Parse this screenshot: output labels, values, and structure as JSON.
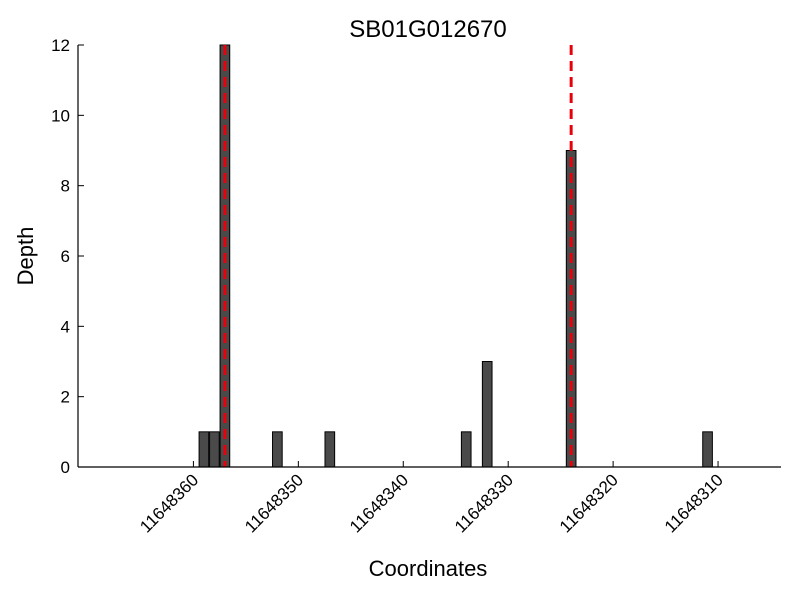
{
  "chart_data": {
    "type": "bar",
    "title": "SB01G012670",
    "xlabel": "Coordinates",
    "ylabel": "Depth",
    "x_reversed": true,
    "xlim": [
      11648371,
      11648304
    ],
    "ylim": [
      0,
      12
    ],
    "x_ticks": [
      11648360,
      11648350,
      11648340,
      11648330,
      11648320,
      11648310
    ],
    "y_ticks": [
      0,
      2,
      4,
      6,
      8,
      10,
      12
    ],
    "bars": [
      {
        "x": 11648359,
        "value": 1
      },
      {
        "x": 11648358,
        "value": 1
      },
      {
        "x": 11648357,
        "value": 12
      },
      {
        "x": 11648352,
        "value": 1
      },
      {
        "x": 11648347,
        "value": 1
      },
      {
        "x": 11648334,
        "value": 1
      },
      {
        "x": 11648332,
        "value": 3
      },
      {
        "x": 11648324,
        "value": 9
      },
      {
        "x": 11648311,
        "value": 1
      }
    ],
    "markers": [
      {
        "x": 11648357,
        "color": "#e8000b"
      },
      {
        "x": 11648324,
        "color": "#e8000b"
      }
    ],
    "bar_color": "#4a4a4a",
    "grid": false
  }
}
